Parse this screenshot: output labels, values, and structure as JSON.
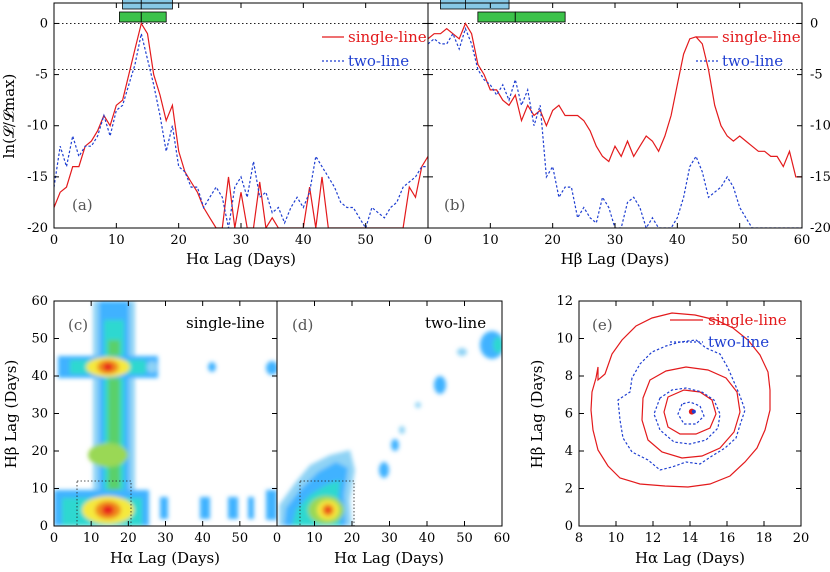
{
  "colors": {
    "single": "#e31a1c",
    "two": "#1f3fd1",
    "bar_blue": "#87c8e6",
    "bar_green": "#3cc24a"
  },
  "chart_data": [
    {
      "id": "a",
      "type": "line",
      "panel_label": "(a)",
      "xlabel": "Hα Lag (Days)",
      "ylabel": "ln(𝓛/𝓛max)",
      "xlim": [
        0,
        60
      ],
      "ylim": [
        -20,
        2
      ],
      "xticks": [
        0,
        10,
        20,
        30,
        40,
        50
      ],
      "yticks": [
        0,
        -5,
        -10,
        -15,
        -20
      ],
      "hlines": [
        0,
        -4.5
      ],
      "legend": [
        "single-line",
        "two-line"
      ],
      "bars": [
        {
          "color": "blue",
          "segments": [
            [
              11,
              14
            ],
            [
              14,
              19
            ]
          ]
        },
        {
          "color": "green",
          "segments": [
            [
              10.5,
              14
            ],
            [
              14,
              18
            ]
          ]
        }
      ],
      "series": [
        {
          "name": "single-line",
          "x": [
            0,
            1,
            2,
            3,
            4,
            5,
            6,
            7,
            8,
            9,
            10,
            11,
            12,
            13,
            14,
            15,
            16,
            17,
            18,
            19,
            20,
            21,
            22,
            23,
            24,
            25,
            26,
            27,
            28,
            29,
            30,
            31,
            32,
            33,
            34,
            35,
            36,
            37,
            38,
            39,
            40,
            41,
            42,
            43,
            44,
            45,
            46,
            47,
            48,
            49,
            50,
            51,
            52,
            53,
            54,
            55,
            56,
            57,
            58,
            59,
            60
          ],
          "y": [
            -18,
            -16.5,
            -16,
            -14,
            -14,
            -12,
            -11.5,
            -10.5,
            -9,
            -10,
            -8,
            -7.5,
            -5,
            -2.5,
            0,
            -1,
            -5,
            -7,
            -9.5,
            -8,
            -12.5,
            -14.5,
            -15.5,
            -16.5,
            -18,
            -19,
            -20,
            -20,
            -15,
            -20,
            -16.5,
            -20,
            -20,
            -15.5,
            -20,
            -19,
            -20,
            -20,
            -20,
            -20,
            -20,
            -16,
            -20,
            -15,
            -20,
            -20,
            -20,
            -20,
            -20,
            -20,
            -20,
            -20,
            -20,
            -20,
            -20,
            -20,
            -20,
            -16,
            -17,
            -14,
            -13
          ]
        },
        {
          "name": "two-line",
          "x": [
            0,
            1,
            2,
            3,
            4,
            5,
            6,
            7,
            8,
            9,
            10,
            11,
            12,
            13,
            14,
            15,
            16,
            17,
            18,
            19,
            20,
            21,
            22,
            23,
            24,
            25,
            26,
            27,
            28,
            29,
            30,
            31,
            32,
            33,
            34,
            35,
            36,
            37,
            38,
            39,
            40,
            41,
            42,
            43,
            44,
            45,
            46,
            47,
            48,
            49,
            50,
            51,
            52,
            53,
            54,
            55,
            56,
            57,
            58,
            59,
            60
          ],
          "y": [
            -16,
            -12,
            -14,
            -11,
            -13,
            -12,
            -12,
            -11,
            -9,
            -11,
            -8.5,
            -8,
            -6,
            -4,
            -1,
            -3.5,
            -6,
            -9,
            -12.5,
            -10,
            -14,
            -14.5,
            -16,
            -16,
            -18,
            -17,
            -16,
            -17,
            -20,
            -16,
            -15,
            -17,
            -13.5,
            -17,
            -16.5,
            -18.5,
            -18,
            -19.5,
            -18,
            -17,
            -18,
            -16.5,
            -13,
            -14,
            -15,
            -16,
            -17.5,
            -18,
            -18,
            -19,
            -20,
            -18,
            -18.5,
            -19,
            -18,
            -17.5,
            -16,
            -15.5,
            -15,
            -14,
            -14
          ]
        }
      ]
    },
    {
      "id": "b",
      "type": "line",
      "panel_label": "(b)",
      "xlabel": "Hβ Lag (Days)",
      "ylabel": "",
      "xlim": [
        0,
        60
      ],
      "ylim": [
        -20,
        2
      ],
      "xticks": [
        0,
        10,
        20,
        30,
        40,
        50,
        60
      ],
      "yticks": [
        0,
        -5,
        -10,
        -15,
        -20
      ],
      "hlines": [
        0,
        -4.5
      ],
      "legend": [
        "single-line",
        "two-line"
      ],
      "bars": [
        {
          "color": "blue",
          "segments": [
            [
              2,
              6
            ],
            [
              6,
              13
            ]
          ]
        },
        {
          "color": "green",
          "segments": [
            [
              8,
              14
            ],
            [
              14,
              22
            ]
          ]
        }
      ],
      "series": [
        {
          "name": "single-line",
          "x": [
            0,
            1,
            2,
            3,
            4,
            5,
            6,
            7,
            8,
            9,
            10,
            11,
            12,
            13,
            14,
            15,
            16,
            17,
            18,
            19,
            20,
            21,
            22,
            23,
            24,
            25,
            26,
            27,
            28,
            29,
            30,
            31,
            32,
            33,
            34,
            35,
            36,
            37,
            38,
            39,
            40,
            41,
            42,
            43,
            44,
            45,
            46,
            47,
            48,
            49,
            50,
            51,
            52,
            53,
            54,
            55,
            56,
            57,
            58,
            59,
            60
          ],
          "y": [
            -1.5,
            -1,
            -1,
            -0.5,
            -1,
            -1.5,
            0,
            -1,
            -4,
            -5,
            -6.5,
            -6.5,
            -7.5,
            -8,
            -7,
            -9.5,
            -8,
            -9,
            -8.5,
            -10,
            -8.5,
            -8,
            -9,
            -9,
            -9,
            -9.5,
            -10.5,
            -12,
            -13,
            -13.5,
            -12,
            -13,
            -11.5,
            -13,
            -12,
            -11,
            -11.5,
            -12.5,
            -11,
            -9,
            -6,
            -3,
            -1.5,
            -1.3,
            -2,
            -4.5,
            -8,
            -10,
            -11,
            -11.5,
            -11,
            -11.5,
            -12,
            -12.5,
            -12.5,
            -13,
            -13,
            -14,
            -12.5,
            -15,
            -15
          ]
        },
        {
          "name": "two-line",
          "x": [
            0,
            1,
            2,
            3,
            4,
            5,
            6,
            7,
            8,
            9,
            10,
            11,
            12,
            13,
            14,
            15,
            16,
            17,
            18,
            19,
            20,
            21,
            22,
            23,
            24,
            25,
            26,
            27,
            28,
            29,
            30,
            31,
            32,
            33,
            34,
            35,
            36,
            37,
            38,
            39,
            40,
            41,
            42,
            43,
            44,
            45,
            46,
            47,
            48,
            49,
            50,
            51,
            52,
            53,
            54,
            55,
            56,
            57,
            58,
            59,
            60
          ],
          "y": [
            -2,
            -1.5,
            -2,
            -2,
            -1,
            -2.5,
            -0.5,
            -2,
            -4.5,
            -5.5,
            -6,
            -7,
            -6,
            -7.5,
            -5.5,
            -8,
            -6.5,
            -10,
            -8,
            -15,
            -14,
            -17,
            -16,
            -16,
            -19,
            -18,
            -19,
            -19.5,
            -17,
            -18,
            -20,
            -20,
            -17.5,
            -17,
            -18,
            -20,
            -19,
            -20,
            -20,
            -20,
            -19,
            -17,
            -14,
            -13,
            -14.5,
            -17,
            -16.5,
            -16,
            -15,
            -16,
            -18,
            -19,
            -20,
            -20,
            -20,
            -20,
            -20,
            -20,
            -20,
            -20,
            -20
          ]
        }
      ]
    },
    {
      "id": "c",
      "type": "heatmap",
      "panel_label": "(c)",
      "tag": "single-line",
      "xlabel": "Hα Lag (Days)",
      "ylabel": "Hβ Lag (Days)",
      "xlim": [
        0,
        60
      ],
      "ylim": [
        0,
        60
      ],
      "xticks": [
        0,
        10,
        20,
        30,
        40,
        50
      ],
      "yticks": [
        0,
        10,
        20,
        30,
        40,
        50,
        60
      ]
    },
    {
      "id": "d",
      "type": "heatmap",
      "panel_label": "(d)",
      "tag": "two-line",
      "xlabel": "Hα Lag (Days)",
      "ylabel": "",
      "xlim": [
        0,
        60
      ],
      "ylim": [
        0,
        60
      ],
      "xticks": [
        0,
        10,
        20,
        30,
        40,
        50,
        60
      ]
    },
    {
      "id": "e",
      "type": "line",
      "panel_label": "(e)",
      "xlabel": "Hα Lag (Days)",
      "ylabel": "Hβ Lag (Days)",
      "xlim": [
        8,
        20
      ],
      "ylim": [
        0,
        12
      ],
      "xticks": [
        8,
        10,
        12,
        14,
        16,
        18,
        20
      ],
      "yticks": [
        0,
        2,
        4,
        6,
        8,
        10,
        12
      ],
      "legend": [
        "single-line",
        "two-line"
      ],
      "center": [
        14.1,
        6.1
      ]
    }
  ]
}
